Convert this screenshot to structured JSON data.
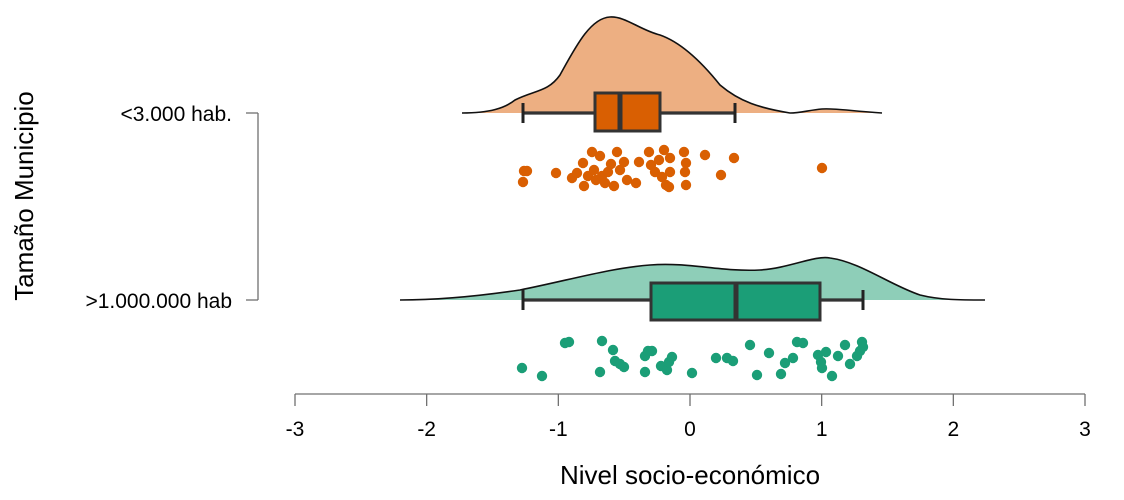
{
  "chart_data": {
    "type": "raincloud",
    "title": "",
    "xlabel": "Nivel socio-económico",
    "ylabel": "Tamaño Municipio",
    "xlim": [
      -3,
      3
    ],
    "x_ticks": [
      "-3",
      "-2",
      "-1",
      "0",
      "1",
      "2",
      "3"
    ],
    "grid": false,
    "legend": null,
    "categories": [
      "<3.000 hab.",
      ">1.000.000 hab"
    ],
    "series": [
      {
        "name": "<3.000 hab.",
        "fill_density": "#EDAF82",
        "fill_box": "#D95F02",
        "point_color": "#D95F02",
        "box": {
          "whisker_low": -1.27,
          "q1": -0.72,
          "median": -0.53,
          "q3": -0.23,
          "whisker_high": 0.34
        },
        "density_range": [
          -1.73,
          1.46
        ],
        "density_peak_x": -0.62,
        "points": [
          -1.27,
          -1.26,
          -1.27,
          -1.25,
          -1.0,
          -0.93,
          -0.9,
          -0.87,
          -0.85,
          -0.83,
          -0.81,
          -0.8,
          -0.78,
          -0.76,
          -0.75,
          -0.74,
          -0.72,
          -0.7,
          -0.69,
          -0.67,
          -0.65,
          -0.63,
          -0.6,
          -0.58,
          -0.56,
          -0.55,
          -0.53,
          -0.51,
          -0.49,
          -0.47,
          -0.43,
          -0.4,
          -0.37,
          -0.33,
          -0.3,
          -0.28,
          -0.25,
          -0.22,
          -0.2,
          -0.18,
          -0.03,
          -0.02,
          -0.03,
          0.07,
          0.22,
          0.25,
          0.33,
          1.0
        ]
      },
      {
        "name": ">1.000.000 hab",
        "fill_density": "#8ECEB8",
        "fill_box": "#1B9E77",
        "point_color": "#1B9E77",
        "box": {
          "whisker_low": -1.27,
          "q1": -0.3,
          "median": 0.35,
          "q3": 0.99,
          "whisker_high": 1.31
        },
        "density_range": [
          -2.2,
          2.24
        ],
        "density_peak_x": 0.95,
        "points": [
          -1.27,
          -1.12,
          -0.95,
          -0.92,
          -0.68,
          -0.65,
          -0.6,
          -0.57,
          -0.55,
          -0.51,
          -0.3,
          -0.28,
          -0.25,
          -0.22,
          -0.17,
          -0.14,
          -0.11,
          -0.05,
          0.02,
          0.19,
          0.25,
          0.28,
          0.35,
          0.45,
          0.52,
          0.6,
          0.7,
          0.73,
          0.78,
          0.82,
          0.84,
          0.9,
          0.98,
          1.0,
          1.05,
          1.08,
          1.1,
          1.15,
          1.18,
          1.22,
          1.25,
          1.28,
          1.3,
          1.32
        ]
      }
    ]
  }
}
